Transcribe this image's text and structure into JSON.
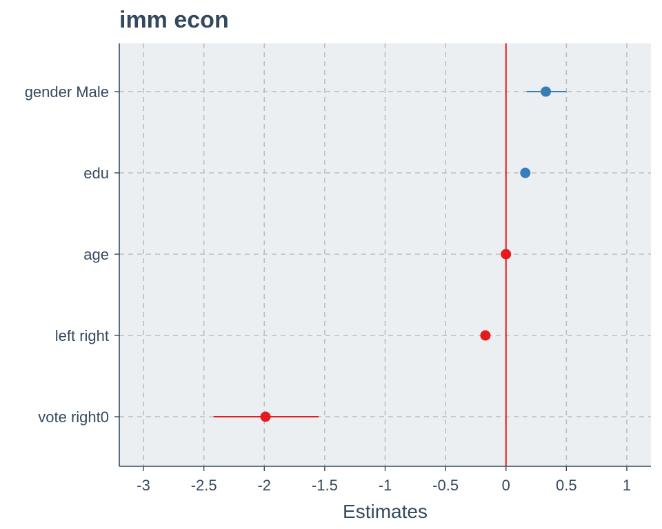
{
  "chart_data": {
    "type": "forest",
    "title": "imm econ",
    "xlabel": "Estimates",
    "ylabel": "",
    "xlim": [
      -3.2,
      1.2
    ],
    "xticks": [
      -3,
      -2.5,
      -2,
      -1.5,
      -1,
      -0.5,
      0,
      0.5,
      1
    ],
    "xtick_labels": [
      "-3",
      "-2.5",
      "-2",
      "-1.5",
      "-1",
      "-0.5",
      "0",
      "0.5",
      "1"
    ],
    "reference_line": 0,
    "grid": true,
    "terms": [
      {
        "label": "gender Male",
        "estimate": 0.33,
        "ci_low": 0.17,
        "ci_high": 0.5,
        "color": "#377eb8"
      },
      {
        "label": "edu",
        "estimate": 0.16,
        "ci_low": 0.14,
        "ci_high": 0.18,
        "color": "#377eb8"
      },
      {
        "label": "age",
        "estimate": 0.0,
        "ci_low": -0.01,
        "ci_high": 0.01,
        "color": "#e41a1c"
      },
      {
        "label": "left right",
        "estimate": -0.17,
        "ci_low": -0.2,
        "ci_high": -0.14,
        "color": "#e41a1c"
      },
      {
        "label": "vote right0",
        "estimate": -1.99,
        "ci_low": -2.42,
        "ci_high": -1.55,
        "color": "#e41a1c"
      }
    ],
    "colors": {
      "positive": "#377eb8",
      "negative": "#e41a1c",
      "reference_line": "#e41a1c",
      "panel_background": "#eceff1",
      "grid": "#bdbdbd",
      "axis_text": "#34495e"
    }
  }
}
